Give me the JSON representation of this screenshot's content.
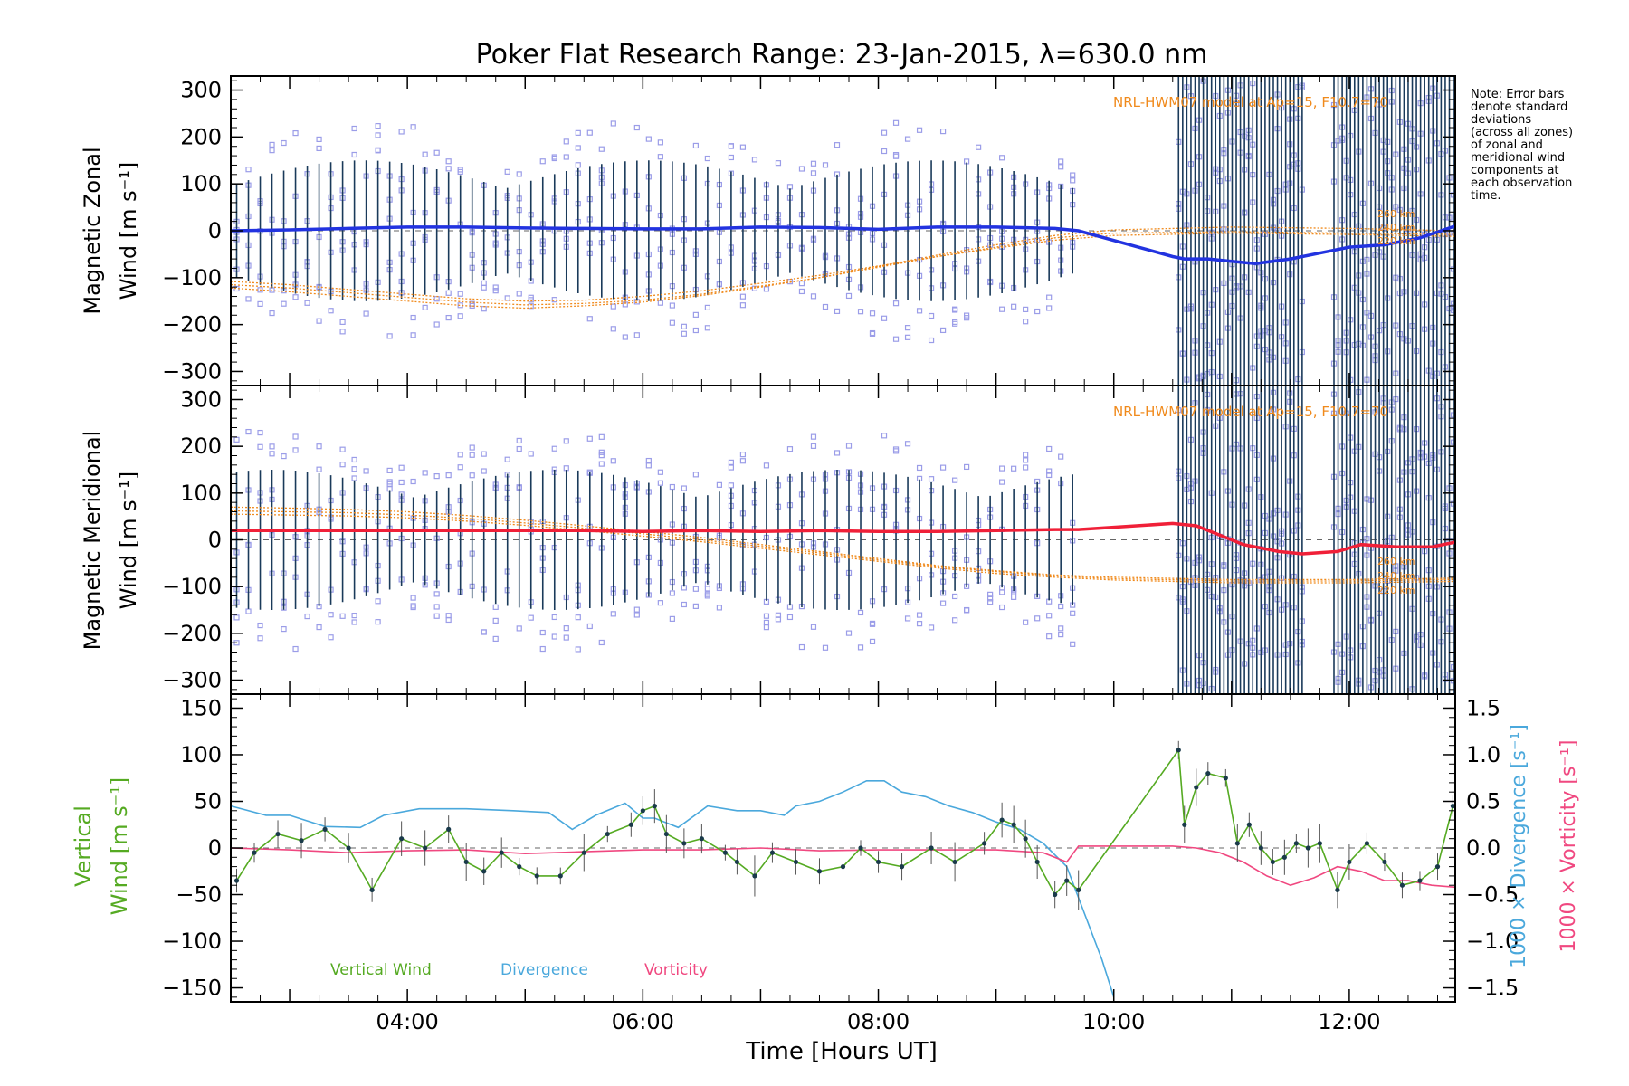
{
  "title": "Poker Flat Research Range: 23-Jan-2015, λ=630.0 nm",
  "note_lines": [
    "Note: Error bars",
    "denote standard",
    "deviations",
    "(across all zones)",
    "of zonal and",
    "meridional wind",
    "components at",
    "each observation",
    "time."
  ],
  "colors": {
    "zonal": "#2233e0",
    "meridional": "#f02038",
    "vertical": "#55aa22",
    "divergence": "#4aa8dc",
    "vorticity": "#f04880",
    "model": "#f08a1c",
    "scatter": "#9b9de8"
  },
  "chart_data": [
    {
      "type": "line",
      "panel": "zonal",
      "ylabel_lines": [
        "Magnetic Zonal",
        "Wind [m s⁻¹]"
      ],
      "model_label": "NRL-HWM07 model at Ap=15, F10.7=70",
      "model_alt_labels": [
        "260 km",
        "240 km",
        "220 km"
      ],
      "ylim": [
        -330,
        330
      ],
      "yticks": [
        -300,
        -200,
        -100,
        0,
        100,
        200,
        300
      ],
      "ytick_labels": [
        "−300",
        "−200",
        "−100",
        "0",
        "100",
        "200",
        "300"
      ],
      "series": [
        {
          "x": [
            2.5,
            3.0,
            3.5,
            4.0,
            4.5,
            5.0,
            5.5,
            6.0,
            6.5,
            7.0,
            7.5,
            8.0,
            8.5,
            9.0,
            9.5,
            9.7,
            10.5,
            10.6,
            10.8,
            11.0,
            11.2,
            11.5,
            11.8,
            12.0,
            12.3,
            12.6,
            12.9
          ],
          "y": [
            0,
            2,
            5,
            8,
            8,
            6,
            5,
            4,
            4,
            8,
            7,
            3,
            8,
            8,
            5,
            0,
            -55,
            -60,
            -60,
            -65,
            -70,
            -60,
            -45,
            -35,
            -30,
            -15,
            10
          ]
        }
      ],
      "model_curves": [
        {
          "x": [
            2.5,
            3.0,
            3.5,
            4.0,
            4.5,
            5.0,
            5.5,
            6.0,
            6.5,
            7.0,
            7.5,
            8.0,
            8.5,
            9.0,
            9.5,
            10.0,
            11.0,
            12.0,
            12.9
          ],
          "y": [
            -115,
            -122,
            -132,
            -142,
            -152,
            -158,
            -155,
            -148,
            -135,
            -118,
            -100,
            -78,
            -55,
            -35,
            -15,
            -5,
            -2,
            -5,
            -8
          ]
        },
        {
          "x": [
            2.5,
            3.0,
            3.5,
            4.0,
            4.5,
            5.0,
            5.5,
            6.0,
            6.5,
            7.0,
            7.5,
            8.0,
            8.5,
            9.0,
            9.5,
            10.0,
            11.0,
            12.0,
            12.9
          ],
          "y": [
            -122,
            -130,
            -140,
            -150,
            -160,
            -165,
            -160,
            -152,
            -138,
            -120,
            -100,
            -76,
            -52,
            -30,
            -10,
            2,
            8,
            5,
            0
          ]
        },
        {
          "x": [
            2.5,
            3.0,
            3.5,
            4.0,
            4.5,
            5.0,
            5.5,
            6.0,
            6.5,
            7.0,
            7.5,
            8.0,
            8.5,
            9.0,
            9.5,
            10.0,
            11.0,
            12.0,
            12.9
          ],
          "y": [
            -108,
            -115,
            -125,
            -135,
            -145,
            -150,
            -148,
            -140,
            -128,
            -112,
            -95,
            -75,
            -55,
            -37,
            -20,
            -10,
            -5,
            -8,
            -12
          ]
        }
      ]
    },
    {
      "type": "line",
      "panel": "meridional",
      "ylabel_lines": [
        "Magnetic Meridional",
        "Wind [m s⁻¹]"
      ],
      "model_label": "NRL-HWM07 model at Ap=15, F10.7=70",
      "model_alt_labels": [
        "260 km",
        "240 km",
        "220 km"
      ],
      "ylim": [
        -330,
        330
      ],
      "yticks": [
        -300,
        -200,
        -100,
        0,
        100,
        200,
        300
      ],
      "ytick_labels": [
        "−300",
        "−200",
        "−100",
        "0",
        "100",
        "200",
        "300"
      ],
      "series": [
        {
          "x": [
            2.5,
            3.0,
            3.5,
            4.0,
            4.5,
            5.0,
            5.5,
            6.0,
            6.5,
            7.0,
            7.5,
            8.0,
            8.5,
            9.0,
            9.5,
            9.7,
            10.5,
            10.7,
            10.9,
            11.1,
            11.4,
            11.6,
            11.9,
            12.1,
            12.4,
            12.7,
            12.9
          ],
          "y": [
            20,
            20,
            20,
            20,
            20,
            20,
            20,
            18,
            20,
            18,
            20,
            18,
            18,
            20,
            22,
            22,
            35,
            30,
            10,
            -10,
            -25,
            -30,
            -25,
            -10,
            -15,
            -15,
            -5
          ]
        }
      ],
      "model_curves": [
        {
          "x": [
            2.5,
            3.0,
            3.5,
            4.0,
            4.5,
            5.0,
            5.5,
            6.0,
            6.5,
            7.0,
            7.5,
            8.0,
            8.5,
            9.0,
            9.5,
            10.0,
            11.0,
            12.0,
            12.9
          ],
          "y": [
            70,
            68,
            65,
            60,
            52,
            42,
            30,
            18,
            5,
            -10,
            -25,
            -40,
            -55,
            -66,
            -75,
            -80,
            -85,
            -85,
            -82
          ]
        },
        {
          "x": [
            2.5,
            3.0,
            3.5,
            4.0,
            4.5,
            5.0,
            5.5,
            6.0,
            6.5,
            7.0,
            7.5,
            8.0,
            8.5,
            9.0,
            9.5,
            10.0,
            11.0,
            12.0,
            12.9
          ],
          "y": [
            62,
            60,
            58,
            53,
            46,
            36,
            25,
            13,
            0,
            -14,
            -28,
            -43,
            -57,
            -68,
            -77,
            -83,
            -88,
            -88,
            -85
          ]
        },
        {
          "x": [
            2.5,
            3.0,
            3.5,
            4.0,
            4.5,
            5.0,
            5.5,
            6.0,
            6.5,
            7.0,
            7.5,
            8.0,
            8.5,
            9.0,
            9.5,
            10.0,
            11.0,
            12.0,
            12.9
          ],
          "y": [
            55,
            53,
            51,
            47,
            40,
            31,
            20,
            8,
            -4,
            -18,
            -32,
            -46,
            -60,
            -72,
            -80,
            -86,
            -92,
            -92,
            -89
          ]
        }
      ]
    },
    {
      "type": "line",
      "panel": "vertical",
      "ylabel_lines": [
        "Vertical",
        "Wind [m s⁻¹]"
      ],
      "ylabel2_divergence": "1000 × Divergence [s⁻¹]",
      "ylabel2_vorticity": "1000 × Vorticity [s⁻¹]",
      "xlabel": "Time [Hours UT]",
      "xlim": [
        2.5,
        12.9
      ],
      "xticks": [
        4,
        6,
        8,
        10,
        12
      ],
      "xtick_labels": [
        "04:00",
        "06:00",
        "08:00",
        "10:00",
        "12:00"
      ],
      "ylim": [
        -165,
        165
      ],
      "yticks": [
        -150,
        -100,
        -50,
        0,
        50,
        100,
        150
      ],
      "ytick_labels": [
        "−150",
        "−100",
        "−50",
        "0",
        "50",
        "100",
        "150"
      ],
      "y2lim": [
        -1.65,
        1.65
      ],
      "y2ticks": [
        -1.5,
        -1.0,
        -0.5,
        0.0,
        0.5,
        1.0,
        1.5
      ],
      "y2tick_labels": [
        "−1.5",
        "−1.0",
        "−0.5",
        "0.0",
        "0.5",
        "1.0",
        "1.5"
      ],
      "legend": [
        "Vertical Wind",
        "Divergence",
        "Vorticity"
      ],
      "vertical_wind": {
        "x": [
          2.55,
          2.7,
          2.9,
          3.1,
          3.3,
          3.5,
          3.7,
          3.95,
          4.15,
          4.35,
          4.5,
          4.65,
          4.8,
          4.95,
          5.1,
          5.3,
          5.5,
          5.7,
          5.9,
          6.0,
          6.1,
          6.2,
          6.35,
          6.5,
          6.7,
          6.8,
          6.95,
          7.1,
          7.3,
          7.5,
          7.7,
          7.85,
          8.0,
          8.2,
          8.45,
          8.65,
          8.9,
          9.05,
          9.15,
          9.25,
          9.35,
          9.5,
          9.6,
          9.7,
          10.55,
          10.6,
          10.7,
          10.8,
          10.95,
          11.05,
          11.15,
          11.25,
          11.35,
          11.45,
          11.55,
          11.65,
          11.75,
          11.9,
          12.0,
          12.15,
          12.3,
          12.45,
          12.6,
          12.75,
          12.88
        ],
        "y": [
          -35,
          -5,
          15,
          8,
          20,
          0,
          -45,
          10,
          0,
          20,
          -15,
          -25,
          -5,
          -20,
          -30,
          -30,
          -5,
          15,
          25,
          40,
          45,
          15,
          5,
          10,
          -5,
          -15,
          -30,
          -5,
          -15,
          -25,
          -20,
          0,
          -15,
          -20,
          0,
          -15,
          5,
          30,
          25,
          10,
          -15,
          -50,
          -35,
          -45,
          105,
          25,
          65,
          80,
          75,
          5,
          25,
          0,
          -15,
          -10,
          5,
          0,
          5,
          -45,
          -15,
          5,
          -15,
          -40,
          -35,
          -20,
          45
        ]
      },
      "divergence": {
        "x": [
          2.5,
          2.8,
          3.0,
          3.3,
          3.6,
          3.8,
          4.1,
          4.5,
          4.9,
          5.2,
          5.4,
          5.6,
          5.85,
          6.0,
          6.1,
          6.3,
          6.55,
          6.8,
          7.0,
          7.2,
          7.3,
          7.5,
          7.7,
          7.9,
          8.05,
          8.2,
          8.4,
          8.6,
          8.8,
          9.0,
          9.2,
          9.4,
          9.6,
          9.75,
          9.9,
          10.0
        ],
        "y": [
          0.45,
          0.35,
          0.35,
          0.23,
          0.22,
          0.35,
          0.42,
          0.42,
          0.4,
          0.38,
          0.2,
          0.35,
          0.48,
          0.32,
          0.32,
          0.22,
          0.45,
          0.4,
          0.4,
          0.35,
          0.45,
          0.5,
          0.6,
          0.72,
          0.72,
          0.6,
          0.55,
          0.45,
          0.38,
          0.28,
          0.2,
          0.05,
          -0.2,
          -0.7,
          -1.2,
          -1.6
        ]
      },
      "vorticity": {
        "x": [
          2.5,
          3.0,
          3.5,
          4.0,
          4.5,
          5.0,
          5.5,
          6.0,
          6.5,
          7.0,
          7.5,
          8.0,
          8.5,
          9.0,
          9.4,
          9.6,
          9.7,
          10.5,
          10.7,
          10.9,
          11.1,
          11.3,
          11.5,
          11.7,
          11.9,
          12.1,
          12.3,
          12.5,
          12.7,
          12.9
        ],
        "y": [
          0.0,
          -0.02,
          -0.05,
          -0.03,
          -0.02,
          -0.06,
          -0.04,
          -0.02,
          -0.02,
          0.0,
          -0.03,
          -0.02,
          -0.02,
          -0.02,
          -0.05,
          -0.15,
          0.02,
          0.02,
          0.0,
          -0.05,
          -0.15,
          -0.3,
          -0.4,
          -0.32,
          -0.2,
          -0.25,
          -0.35,
          -0.35,
          -0.4,
          -0.42
        ]
      }
    }
  ]
}
